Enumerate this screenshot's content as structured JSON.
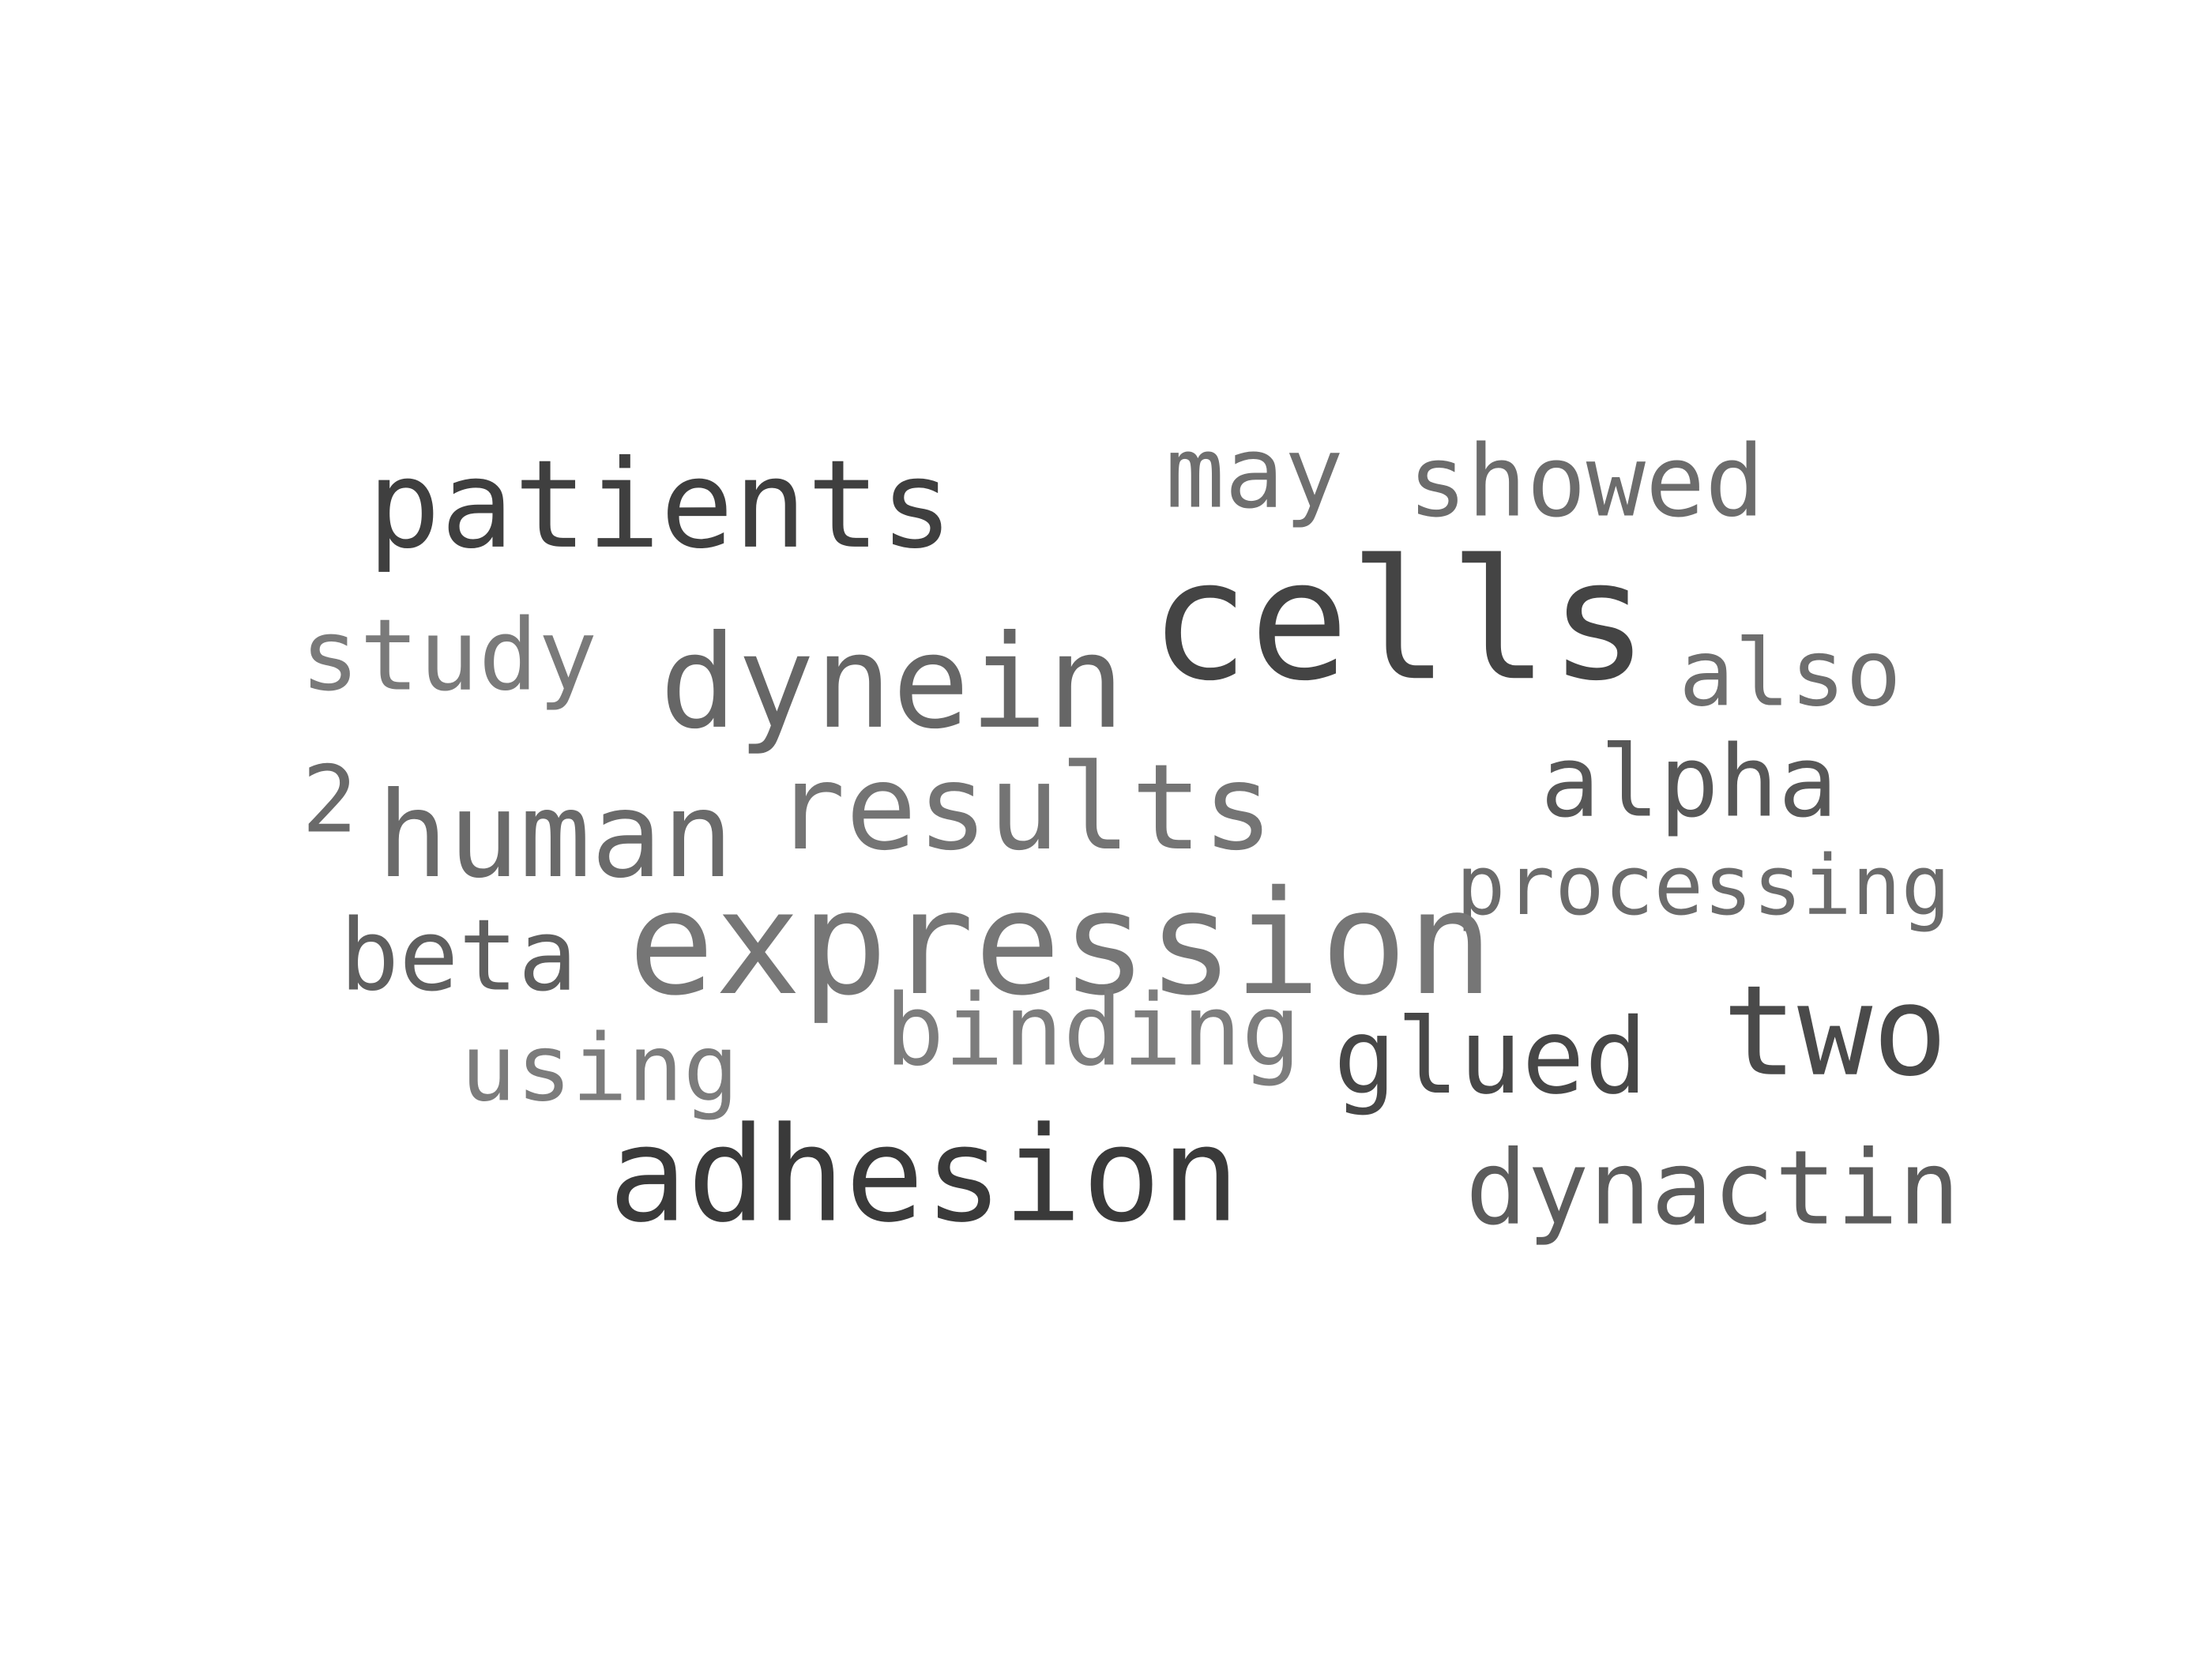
{
  "words": [
    {
      "text": "patients",
      "color": "#3f3f3f"
    },
    {
      "text": "may",
      "color": "#6f6f6f"
    },
    {
      "text": "showed",
      "color": "#6c6c6c"
    },
    {
      "text": "cells",
      "color": "#444444"
    },
    {
      "text": "study",
      "color": "#7a7a7a"
    },
    {
      "text": "dynein",
      "color": "#666666"
    },
    {
      "text": "also",
      "color": "#6e6e6e"
    },
    {
      "text": "alpha",
      "color": "#575757"
    },
    {
      "text": "2",
      "color": "#6a6a6a"
    },
    {
      "text": "human",
      "color": "#6a6a6a"
    },
    {
      "text": "results",
      "color": "#747474"
    },
    {
      "text": "processing",
      "color": "#6b6b6b"
    },
    {
      "text": "beta",
      "color": "#5f5f5f"
    },
    {
      "text": "expression",
      "color": "#767676"
    },
    {
      "text": "two",
      "color": "#4a4a4a"
    },
    {
      "text": "binding",
      "color": "#7d7d7d"
    },
    {
      "text": "glued",
      "color": "#474747"
    },
    {
      "text": "using",
      "color": "#7c7c7c"
    },
    {
      "text": "adhesion",
      "color": "#3a3a3a"
    },
    {
      "text": "dynactin",
      "color": "#5c5c5c"
    }
  ]
}
